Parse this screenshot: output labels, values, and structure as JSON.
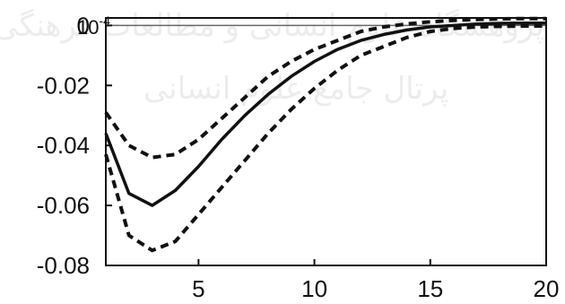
{
  "chart_data": {
    "type": "line",
    "title": "",
    "xlabel": "",
    "ylabel": "",
    "xlim": [
      1,
      20
    ],
    "ylim": [
      -0.08,
      0.0025
    ],
    "y_scale_label": {
      "base": "10",
      "exponent": "-4"
    },
    "x_ticks": [
      5,
      10,
      15,
      20
    ],
    "y_ticks": [
      0,
      -0.02,
      -0.04,
      -0.06,
      -0.08
    ],
    "x_tick_labels": [
      "5",
      "10",
      "15",
      "20"
    ],
    "y_tick_labels": [
      "0",
      "-0.02",
      "-0.04",
      "-0.06",
      "-0.08"
    ],
    "zero_line": true,
    "grid": false,
    "legend": "none",
    "series": [
      {
        "style": "solid",
        "color": "#111111",
        "x": [
          1,
          2,
          3,
          4,
          5,
          6,
          7,
          8,
          9,
          10,
          11,
          12,
          13,
          14,
          15,
          16,
          17,
          18,
          19,
          20
        ],
        "y": [
          -0.036,
          -0.056,
          -0.06,
          -0.055,
          -0.047,
          -0.038,
          -0.03,
          -0.023,
          -0.017,
          -0.012,
          -0.008,
          -0.005,
          -0.003,
          -0.0015,
          -0.0005,
          0.0,
          0.0005,
          0.0007,
          0.0008,
          0.0008
        ]
      },
      {
        "style": "dashed",
        "color": "#111111",
        "x": [
          1,
          2,
          3,
          4,
          5,
          6,
          7,
          8,
          9,
          10,
          11,
          12,
          13,
          14,
          15,
          16,
          17,
          18,
          19,
          20
        ],
        "y": [
          -0.029,
          -0.04,
          -0.044,
          -0.043,
          -0.038,
          -0.031,
          -0.024,
          -0.017,
          -0.012,
          -0.008,
          -0.005,
          -0.002,
          -0.0005,
          0.0005,
          0.0012,
          0.0017,
          0.002,
          0.0022,
          0.0023,
          0.0023
        ]
      },
      {
        "style": "dashed",
        "color": "#111111",
        "x": [
          1,
          2,
          3,
          4,
          5,
          6,
          7,
          8,
          9,
          10,
          11,
          12,
          13,
          14,
          15,
          16,
          17,
          18,
          19,
          20
        ],
        "y": [
          -0.043,
          -0.07,
          -0.075,
          -0.072,
          -0.063,
          -0.054,
          -0.045,
          -0.036,
          -0.028,
          -0.021,
          -0.015,
          -0.01,
          -0.007,
          -0.004,
          -0.002,
          -0.001,
          -0.0005,
          -0.0003,
          -0.0002,
          -0.0002
        ]
      }
    ]
  }
}
